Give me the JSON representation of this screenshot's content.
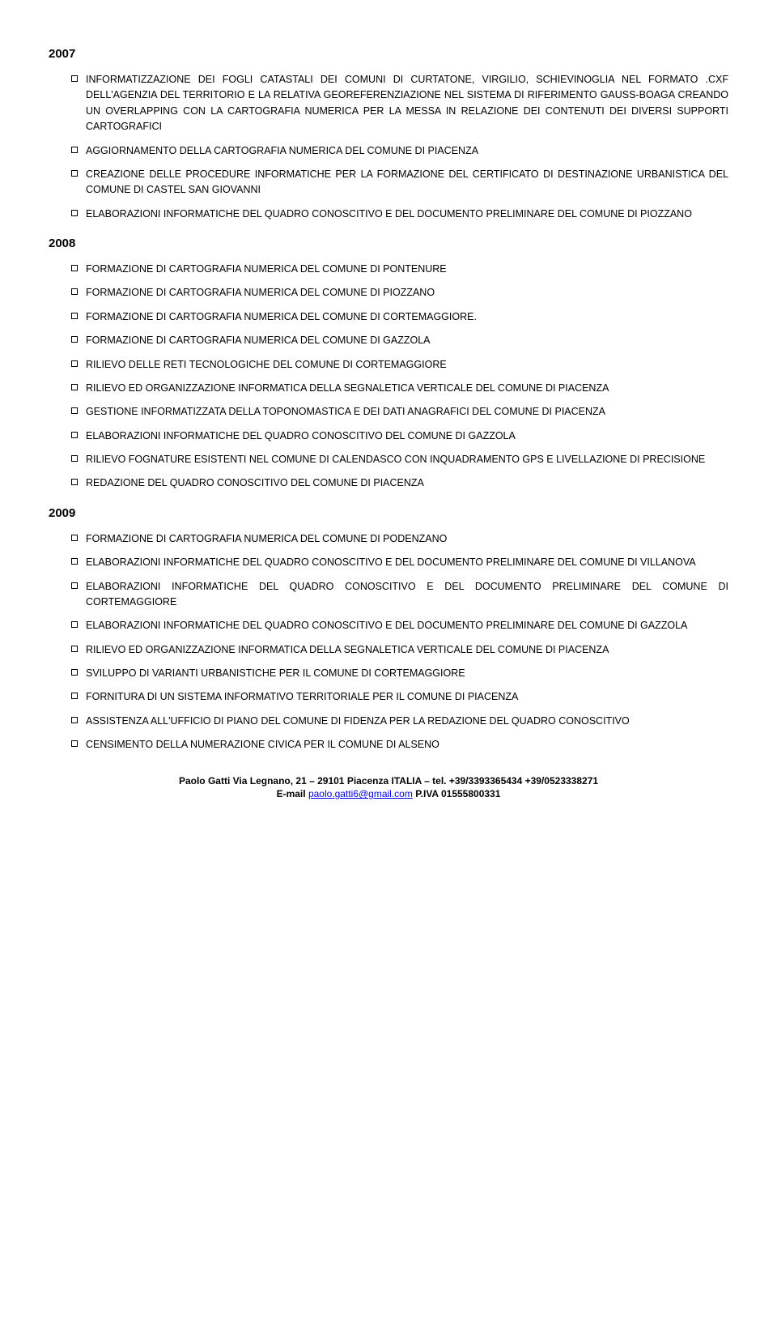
{
  "colors": {
    "text": "#000000",
    "background": "#ffffff",
    "link": "#0000ee"
  },
  "typography": {
    "body_fontsize_pt": 12.5,
    "year_fontsize_pt": 15,
    "footer_fontsize_pt": 12,
    "font_family": "Arial"
  },
  "sections": [
    {
      "year": "2007",
      "items": [
        "INFORMATIZZAZIONE DEI FOGLI CATASTALI DEI COMUNI DI CURTATONE, VIRGILIO, SCHIEVINOGLIA NEL FORMATO .CXF DELL'AGENZIA DEL TERRITORIO E LA RELATIVA GEOREFERENZIAZIONE NEL SISTEMA DI RIFERIMENTO GAUSS-BOAGA CREANDO UN OVERLAPPING CON LA CARTOGRAFIA NUMERICA PER LA MESSA IN RELAZIONE DEI CONTENUTI DEI DIVERSI SUPPORTI CARTOGRAFICI",
        "AGGIORNAMENTO DELLA CARTOGRAFIA NUMERICA DEL COMUNE DI PIACENZA",
        "CREAZIONE DELLE PROCEDURE INFORMATICHE PER LA FORMAZIONE DEL CERTIFICATO DI DESTINAZIONE URBANISTICA DEL COMUNE DI CASTEL SAN GIOVANNI",
        "ELABORAZIONI INFORMATICHE DEL QUADRO CONOSCITIVO E DEL DOCUMENTO PRELIMINARE DEL COMUNE DI PIOZZANO"
      ]
    },
    {
      "year": "2008",
      "items": [
        "FORMAZIONE DI CARTOGRAFIA NUMERICA DEL COMUNE DI PONTENURE",
        "FORMAZIONE DI CARTOGRAFIA NUMERICA DEL COMUNE DI PIOZZANO",
        "FORMAZIONE DI CARTOGRAFIA NUMERICA DEL COMUNE DI CORTEMAGGIORE.",
        "FORMAZIONE DI CARTOGRAFIA NUMERICA DEL COMUNE DI GAZZOLA",
        "RILIEVO DELLE RETI TECNOLOGICHE DEL COMUNE DI CORTEMAGGIORE",
        "RILIEVO ED ORGANIZZAZIONE INFORMATICA DELLA SEGNALETICA VERTICALE DEL COMUNE DI PIACENZA",
        "GESTIONE INFORMATIZZATA DELLA TOPONOMASTICA E DEI DATI ANAGRAFICI DEL COMUNE DI PIACENZA",
        "ELABORAZIONI INFORMATICHE DEL QUADRO CONOSCITIVO DEL COMUNE DI GAZZOLA",
        "RILIEVO FOGNATURE ESISTENTI NEL COMUNE DI CALENDASCO CON INQUADRAMENTO GPS E LIVELLAZIONE DI PRECISIONE",
        "REDAZIONE DEL QUADRO CONOSCITIVO DEL COMUNE DI PIACENZA"
      ]
    },
    {
      "year": "2009",
      "items": [
        "FORMAZIONE DI CARTOGRAFIA NUMERICA DEL COMUNE DI PODENZANO",
        "ELABORAZIONI INFORMATICHE DEL QUADRO CONOSCITIVO E DEL DOCUMENTO PRELIMINARE DEL COMUNE DI VILLANOVA",
        "ELABORAZIONI INFORMATICHE DEL QUADRO CONOSCITIVO E DEL DOCUMENTO PRELIMINARE DEL COMUNE DI CORTEMAGGIORE",
        "ELABORAZIONI INFORMATICHE DEL QUADRO CONOSCITIVO E DEL DOCUMENTO PRELIMINARE DEL COMUNE DI GAZZOLA",
        "RILIEVO ED ORGANIZZAZIONE INFORMATICA DELLA SEGNALETICA VERTICALE DEL COMUNE DI PIACENZA",
        "SVILUPPO DI VARIANTI URBANISTICHE PER IL COMUNE DI CORTEMAGGIORE",
        "FORNITURA DI UN SISTEMA INFORMATIVO TERRITORIALE PER IL COMUNE DI PIACENZA",
        "ASSISTENZA ALL'UFFICIO DI PIANO DEL COMUNE DI FIDENZA PER LA REDAZIONE DEL QUADRO CONOSCITIVO",
        "CENSIMENTO DELLA NUMERAZIONE CIVICA PER IL COMUNE DI ALSENO"
      ]
    }
  ],
  "footer": {
    "name": "Paolo Gatti",
    "address": "Via Legnano, 21 – 29101 Piacenza ITALIA – tel. +39/3393365434 +39/0523338271",
    "email_label": "E-mail ",
    "email": "paolo.gatti6@gmail.com",
    "piva": " P.IVA 01555800331"
  }
}
